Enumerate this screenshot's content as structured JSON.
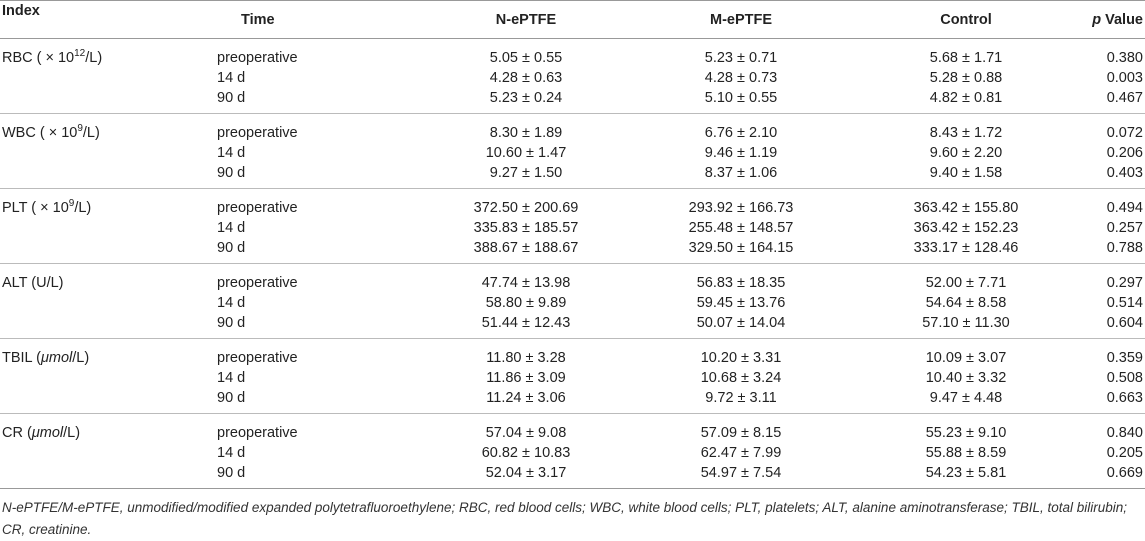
{
  "columns": [
    "Index",
    "Time",
    "N-ePTFE",
    "M-ePTFE",
    "Control",
    "p",
    " Value"
  ],
  "groups": [
    {
      "label_parts": [
        "RBC ( × 10",
        "12",
        "/L)"
      ],
      "rows": [
        [
          "preoperative",
          "5.05 ± 0.55",
          "5.23 ± 0.71",
          "5.68 ± 1.71",
          "0.380"
        ],
        [
          "14 d",
          "4.28 ± 0.63",
          "4.28 ± 0.73",
          "5.28 ± 0.88",
          "0.003"
        ],
        [
          "90 d",
          "5.23 ± 0.24",
          "5.10 ± 0.55",
          "4.82 ± 0.81",
          "0.467"
        ]
      ]
    },
    {
      "label_parts": [
        "WBC ( × 10",
        "9",
        "/L)"
      ],
      "rows": [
        [
          "preoperative",
          "8.30 ± 1.89",
          "6.76 ± 2.10",
          "8.43 ± 1.72",
          "0.072"
        ],
        [
          "14 d",
          "10.60 ± 1.47",
          "9.46 ± 1.19",
          "9.60 ± 2.20",
          "0.206"
        ],
        [
          "90 d",
          "9.27 ± 1.50",
          "8.37 ± 1.06",
          "9.40 ± 1.58",
          "0.403"
        ]
      ]
    },
    {
      "label_parts": [
        "PLT ( × 10",
        "9",
        "/L)"
      ],
      "rows": [
        [
          "preoperative",
          "372.50 ± 200.69",
          "293.92 ± 166.73",
          "363.42 ± 155.80",
          "0.494"
        ],
        [
          "14 d",
          "335.83 ± 185.57",
          "255.48 ± 148.57",
          "363.42 ± 152.23",
          "0.257"
        ],
        [
          "90 d",
          "388.67 ± 188.67",
          "329.50 ± 164.15",
          "333.17 ± 128.46",
          "0.788"
        ]
      ]
    },
    {
      "label_parts": [
        "ALT (U/L)",
        "",
        ""
      ],
      "rows": [
        [
          "preoperative",
          "47.74 ± 13.98",
          "56.83 ± 18.35",
          "52.00 ± 7.71",
          "0.297"
        ],
        [
          "14 d",
          "58.80 ± 9.89",
          "59.45 ± 13.76",
          "54.64 ± 8.58",
          "0.514"
        ],
        [
          "90 d",
          "51.44 ± 12.43",
          "50.07 ± 14.04",
          "57.10 ± 11.30",
          "0.604"
        ]
      ]
    },
    {
      "label_parts": [
        "TBIL (μmol/L)",
        "",
        ""
      ],
      "rows": [
        [
          "preoperative",
          "11.80 ± 3.28",
          "10.20 ± 3.31",
          "10.09 ± 3.07",
          "0.359"
        ],
        [
          "14 d",
          "11.86 ± 3.09",
          "10.68 ± 3.24",
          "10.40 ± 3.32",
          "0.508"
        ],
        [
          "90 d",
          "11.24 ± 3.06",
          "9.72 ± 3.11",
          "9.47 ± 4.48",
          "0.663"
        ]
      ]
    },
    {
      "label_parts": [
        "CR (μmol/L)",
        "",
        ""
      ],
      "rows": [
        [
          "preoperative",
          "57.04 ± 9.08",
          "57.09 ± 8.15",
          "55.23 ± 9.10",
          "0.840"
        ],
        [
          "14 d",
          "60.82 ± 10.83",
          "62.47 ± 7.99",
          "55.88 ± 8.59",
          "0.205"
        ],
        [
          "90 d",
          "52.04 ± 3.17",
          "54.97 ± 7.54",
          "54.23 ± 5.81",
          "0.669"
        ]
      ]
    }
  ],
  "footnote": "N-ePTFE/M-ePTFE, unmodified/modified expanded polytetrafluoroethylene; RBC, red blood cells; WBC, white blood cells; PLT, platelets; ALT, alanine aminotransferase; TBIL, total bilirubin; CR, creatinine."
}
